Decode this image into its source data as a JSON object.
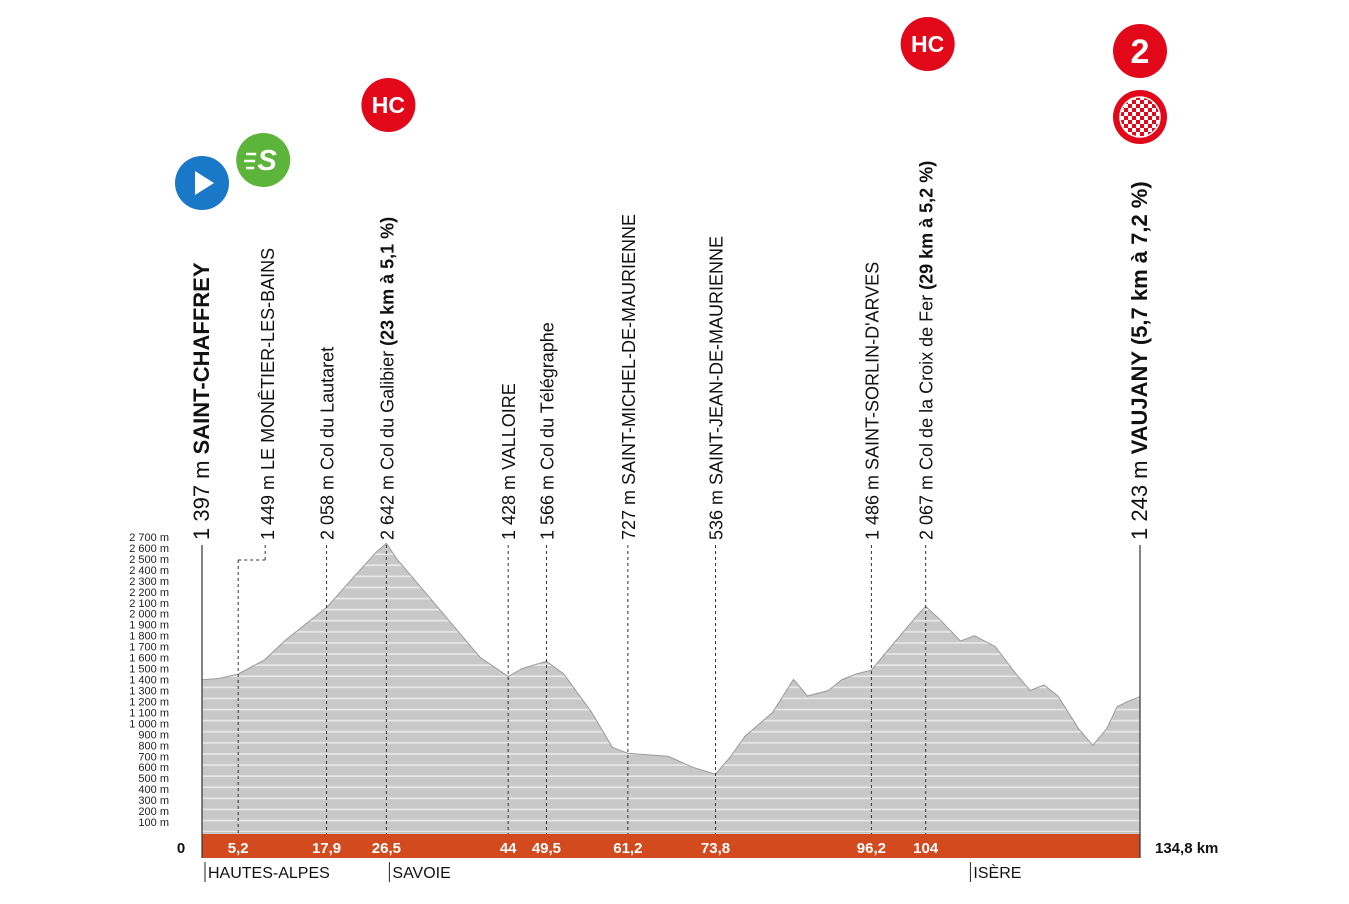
{
  "chart_data": {
    "type": "area",
    "ylim": [
      0,
      2700
    ],
    "y_ticks": [
      "100 m",
      "200 m",
      "300 m",
      "400 m",
      "500 m",
      "600 m",
      "700 m",
      "800 m",
      "900 m",
      "1 000 m",
      "1 100 m",
      "1 200 m",
      "1 300 m",
      "1 400 m",
      "1 500 m",
      "1 600 m",
      "1 700 m",
      "1 800 m",
      "1 900 m",
      "2 000 m",
      "2 100 m",
      "2 200 m",
      "2 300 m",
      "2 400 m",
      "2 500 m",
      "2 600 m",
      "2 700 m"
    ],
    "x_start_label": "0",
    "x_end_label": "134,8 km",
    "total_km": 134.8,
    "profile": {
      "km": [
        0,
        2.5,
        5.2,
        9,
        12,
        17.9,
        22,
        25,
        26.5,
        28,
        32,
        36,
        40,
        44,
        46,
        49.5,
        52,
        56,
        59,
        61.2,
        67,
        70.5,
        73.8,
        76,
        78,
        82,
        85,
        87,
        90,
        92,
        94,
        96.2,
        99,
        103,
        104,
        106,
        109,
        111,
        114,
        117,
        119,
        121,
        123,
        126,
        128,
        130,
        131.5,
        133,
        134.8
      ],
      "alt": [
        1397,
        1410,
        1449,
        1580,
        1760,
        2058,
        2350,
        2560,
        2642,
        2500,
        2200,
        1900,
        1600,
        1428,
        1500,
        1566,
        1450,
        1100,
        780,
        727,
        700,
        600,
        536,
        700,
        880,
        1100,
        1400,
        1250,
        1300,
        1400,
        1450,
        1486,
        1700,
        2000,
        2067,
        1950,
        1750,
        1800,
        1700,
        1450,
        1300,
        1350,
        1250,
        950,
        800,
        950,
        1150,
        1200,
        1243
      ]
    },
    "waypoints": [
      {
        "km": 0,
        "km_label": "",
        "alt_label": "1 397 m",
        "name": "SAINT-CHAFFREY",
        "detail": "",
        "bold": true,
        "badge": "start"
      },
      {
        "km": 5.2,
        "km_label": "5,2",
        "alt_label": "1 449 m",
        "name": "LE MONÊTIER-LES-BAINS",
        "detail": "",
        "bold": false,
        "badge": "sprint"
      },
      {
        "km": 17.9,
        "km_label": "17,9",
        "alt_label": "2 058 m",
        "name": "Col du Lautaret",
        "detail": "",
        "bold": false,
        "badge": ""
      },
      {
        "km": 26.5,
        "km_label": "26,5",
        "alt_label": "2 642 m",
        "name": "Col du Galibier",
        "detail": "(23 km à 5,1 %)",
        "bold": false,
        "badge": "hc"
      },
      {
        "km": 44,
        "km_label": "44",
        "alt_label": "1 428 m",
        "name": "VALLOIRE",
        "detail": "",
        "bold": false,
        "badge": ""
      },
      {
        "km": 49.5,
        "km_label": "49,5",
        "alt_label": "1 566 m",
        "name": "Col du Télégraphe",
        "detail": "",
        "bold": false,
        "badge": ""
      },
      {
        "km": 61.2,
        "km_label": "61,2",
        "alt_label": "727 m",
        "name": "SAINT-MICHEL-DE-MAURIENNE",
        "detail": "",
        "bold": false,
        "badge": ""
      },
      {
        "km": 73.8,
        "km_label": "73,8",
        "alt_label": "536 m",
        "name": "SAINT-JEAN-DE-MAURIENNE",
        "detail": "",
        "bold": false,
        "badge": ""
      },
      {
        "km": 96.2,
        "km_label": "96,2",
        "alt_label": "1 486 m",
        "name": "SAINT-SORLIN-D'ARVES",
        "detail": "",
        "bold": false,
        "badge": ""
      },
      {
        "km": 104,
        "km_label": "104",
        "alt_label": "2 067 m",
        "name": "Col de la Croix de Fer",
        "detail": "(29 km à 5,2 %)",
        "bold": false,
        "badge": "hc"
      },
      {
        "km": 134.8,
        "km_label": "",
        "alt_label": "1 243 m",
        "name": "VAUJANY",
        "detail": "(5,7 km à 7,2 %)",
        "bold": true,
        "badge": "finish"
      }
    ],
    "regions": [
      {
        "km": 0,
        "name": "HAUTES-ALPES"
      },
      {
        "km": 26.5,
        "name": "SAVOIE"
      },
      {
        "km": 110,
        "name": "ISÈRE"
      }
    ],
    "badges": {
      "hc_text": "HC",
      "sprint_text": "S",
      "finish_category": "2"
    },
    "colors": {
      "profile_fill": "#c8c8c8",
      "profile_stripe": "#e6e6e6",
      "km_bar": "#d24a1e",
      "hc_badge": "#e2081a",
      "start_badge": "#1a78c8",
      "sprint_badge": "#5db43a"
    }
  }
}
